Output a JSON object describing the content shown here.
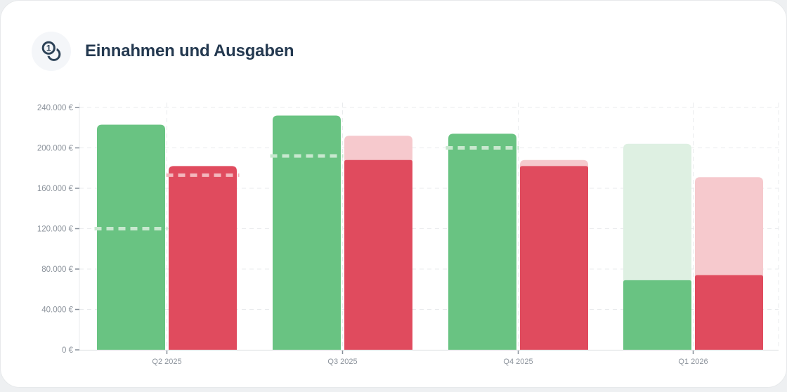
{
  "header": {
    "title": "Einnahmen und Ausgaben",
    "icon": "coins-icon"
  },
  "colors": {
    "card_bg": "#ffffff",
    "page_bg": "#eef0f2",
    "title_text": "#243950",
    "icon_badge_bg": "#f4f6f9",
    "icon_stroke": "#2c4257",
    "axis_label": "#8b929b",
    "grid_line": "#e9ebed",
    "axis_line": "#e3e5e7",
    "tick_mark": "#868e98",
    "income_solid": "#69c382",
    "income_light": "#def0e2",
    "income_dashed": "#c8e8cf",
    "expense_solid": "#e04b5e",
    "expense_light": "#f6c9cd",
    "expense_dashed": "#f3b7bd"
  },
  "chart_data": {
    "type": "bar",
    "title": "Einnahmen und Ausgaben",
    "categories": [
      "Q2 2025",
      "Q3 2025",
      "Q4 2025",
      "Q1 2026"
    ],
    "currency": "€",
    "ylim": [
      0,
      240000
    ],
    "y_tick_step": 40000,
    "y_tick_labels": [
      "0 €",
      "40.000 €",
      "80.000 €",
      "120.000 €",
      "160.000 €",
      "200.000 €",
      "240.000 €"
    ],
    "grid": "dashed",
    "legend_position": "none",
    "series": [
      {
        "name": "Einnahmen",
        "bar_total": [
          223000,
          232000,
          214000,
          204000
        ],
        "bar_solid": [
          223000,
          232000,
          214000,
          69000
        ],
        "dashed_marker": [
          120000,
          192000,
          200000,
          null
        ],
        "color_solid": "#69c382",
        "color_light": "#def0e2",
        "color_dashed": "#c8e8cf"
      },
      {
        "name": "Ausgaben",
        "bar_total": [
          182000,
          212000,
          188000,
          171000
        ],
        "bar_solid": [
          182000,
          188000,
          182000,
          74000
        ],
        "dashed_marker": [
          173000,
          null,
          null,
          null
        ],
        "color_solid": "#e04b5e",
        "color_light": "#f6c9cd",
        "color_dashed": "#f3b7bd"
      }
    ]
  }
}
